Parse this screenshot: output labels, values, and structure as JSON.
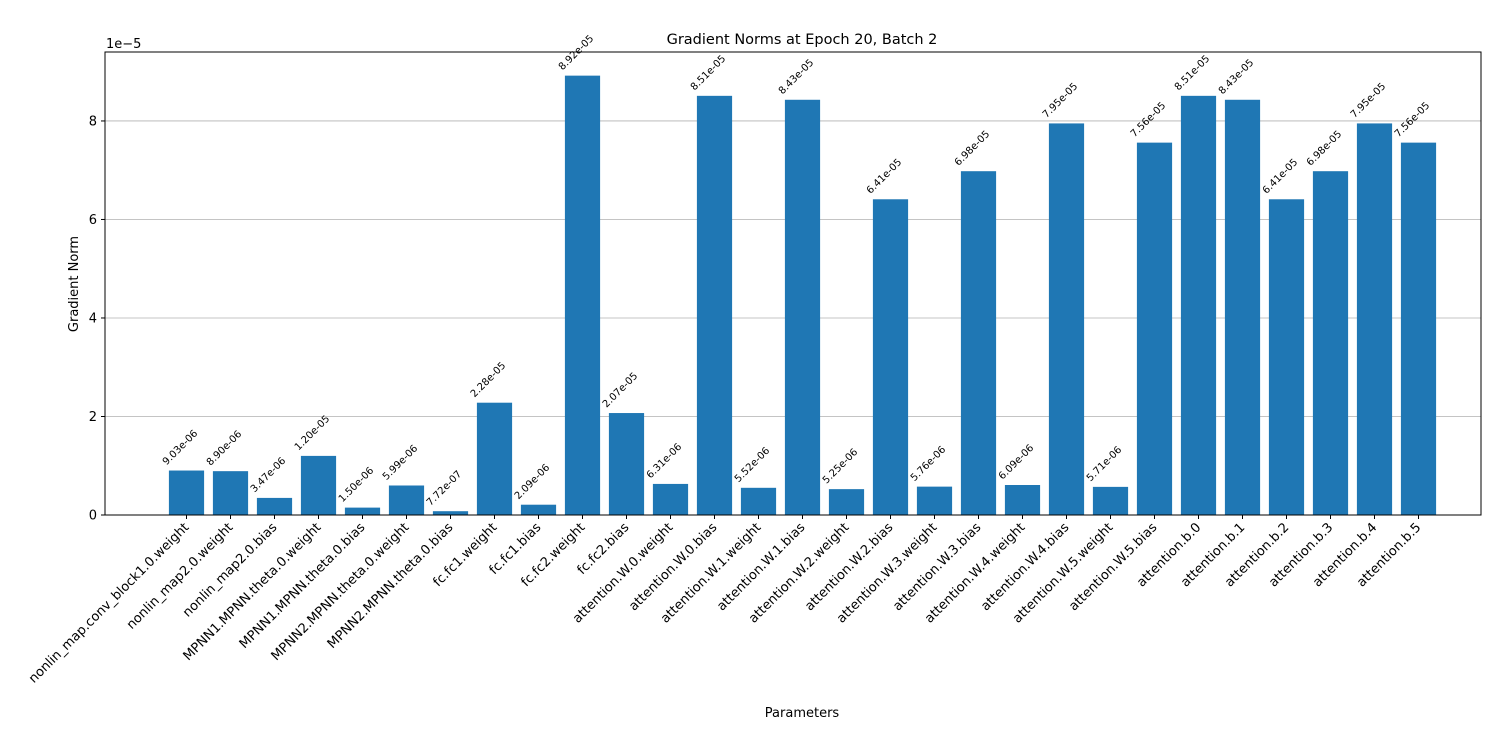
{
  "chart_data": {
    "type": "bar",
    "title": "Gradient Norms at Epoch 20, Batch 2",
    "xlabel": "Parameters",
    "ylabel": "Gradient Norm",
    "offset_text": "1e−5",
    "ylim": [
      0,
      9.4e-05
    ],
    "yticks": [
      0,
      2e-05,
      4e-05,
      6e-05,
      8e-05
    ],
    "ytick_labels": [
      "0",
      "2",
      "4",
      "6",
      "8"
    ],
    "grid": "y",
    "bar_color": "#1f77b4",
    "categories": [
      "nonlin_map.conv_block1.0.weight",
      "nonlin_map2.0.weight",
      "nonlin_map2.0.bias",
      "MPNN1.MPNN.theta.0.weight",
      "MPNN1.MPNN.theta.0.bias",
      "MPNN2.MPNN.theta.0.weight",
      "MPNN2.MPNN.theta.0.bias",
      "fc.fc1.weight",
      "fc.fc1.bias",
      "fc.fc2.weight",
      "fc.fc2.bias",
      "attention.W.0.weight",
      "attention.W.0.bias",
      "attention.W.1.weight",
      "attention.W.1.bias",
      "attention.W.2.weight",
      "attention.W.2.bias",
      "attention.W.3.weight",
      "attention.W.3.bias",
      "attention.W.4.weight",
      "attention.W.4.bias",
      "attention.W.5.weight",
      "attention.W.5.bias",
      "attention.b.0",
      "attention.b.1",
      "attention.b.2",
      "attention.b.3",
      "attention.b.4",
      "attention.b.5"
    ],
    "values": [
      9.03e-06,
      8.9e-06,
      3.47e-06,
      1.2e-05,
      1.5e-06,
      5.99e-06,
      7.72e-07,
      2.28e-05,
      2.09e-06,
      8.92e-05,
      2.07e-05,
      6.31e-06,
      8.51e-05,
      5.52e-06,
      8.43e-05,
      5.25e-06,
      6.41e-05,
      5.76e-06,
      6.98e-05,
      6.09e-06,
      7.95e-05,
      5.71e-06,
      7.56e-05,
      8.51e-05,
      8.43e-05,
      6.41e-05,
      6.98e-05,
      7.95e-05,
      7.56e-05
    ],
    "data_labels": [
      "9.03e-06",
      "8.90e-06",
      "3.47e-06",
      "1.20e-05",
      "1.50e-06",
      "5.99e-06",
      "7.72e-07",
      "2.28e-05",
      "2.09e-06",
      "8.92e-05",
      "2.07e-05",
      "6.31e-06",
      "8.51e-05",
      "5.52e-06",
      "8.43e-05",
      "5.25e-06",
      "6.41e-05",
      "5.76e-06",
      "6.98e-05",
      "6.09e-06",
      "7.95e-05",
      "5.71e-06",
      "7.56e-05",
      "8.51e-05",
      "8.43e-05",
      "6.41e-05",
      "6.98e-05",
      "7.95e-05",
      "7.56e-05"
    ]
  }
}
